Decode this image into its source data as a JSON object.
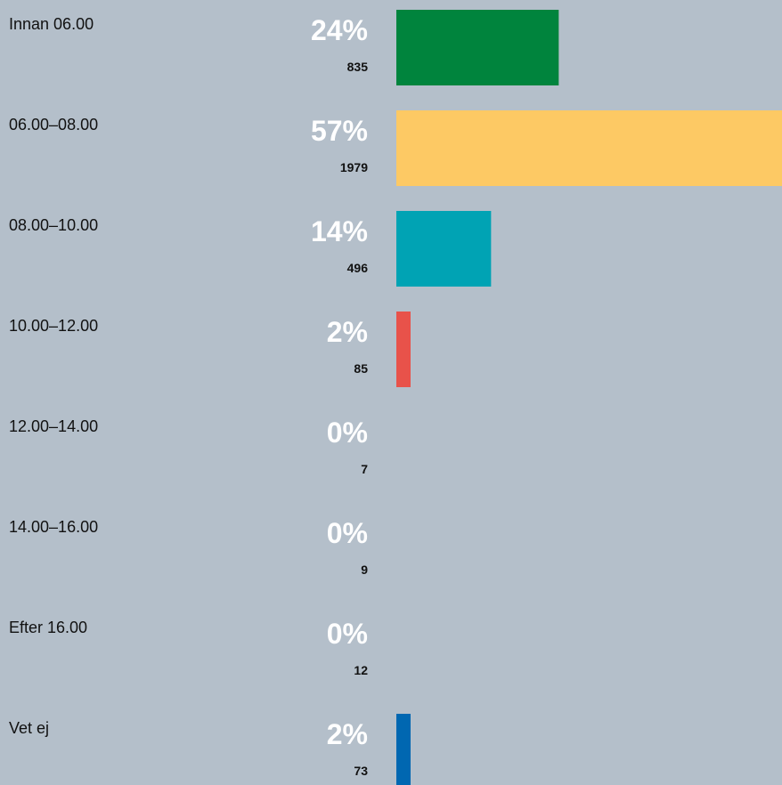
{
  "chart_data": {
    "type": "bar",
    "orientation": "horizontal",
    "categories": [
      "Innan 06.00",
      "06.00–08.00",
      "08.00–10.00",
      "10.00–12.00",
      "12.00–14.00",
      "14.00–16.00",
      "Efter 16.00",
      "Vet ej"
    ],
    "values": [
      24,
      57,
      14,
      2,
      0,
      0,
      0,
      2
    ],
    "value_labels": [
      "24%",
      "57%",
      "14%",
      "2%",
      "0%",
      "0%",
      "0%",
      "2%"
    ],
    "counts": [
      835,
      1979,
      496,
      85,
      7,
      9,
      12,
      73
    ],
    "colors": [
      "#00843d",
      "#fdc964",
      "#00a3b4",
      "#e8524a",
      null,
      null,
      null,
      "#0067b1"
    ]
  }
}
